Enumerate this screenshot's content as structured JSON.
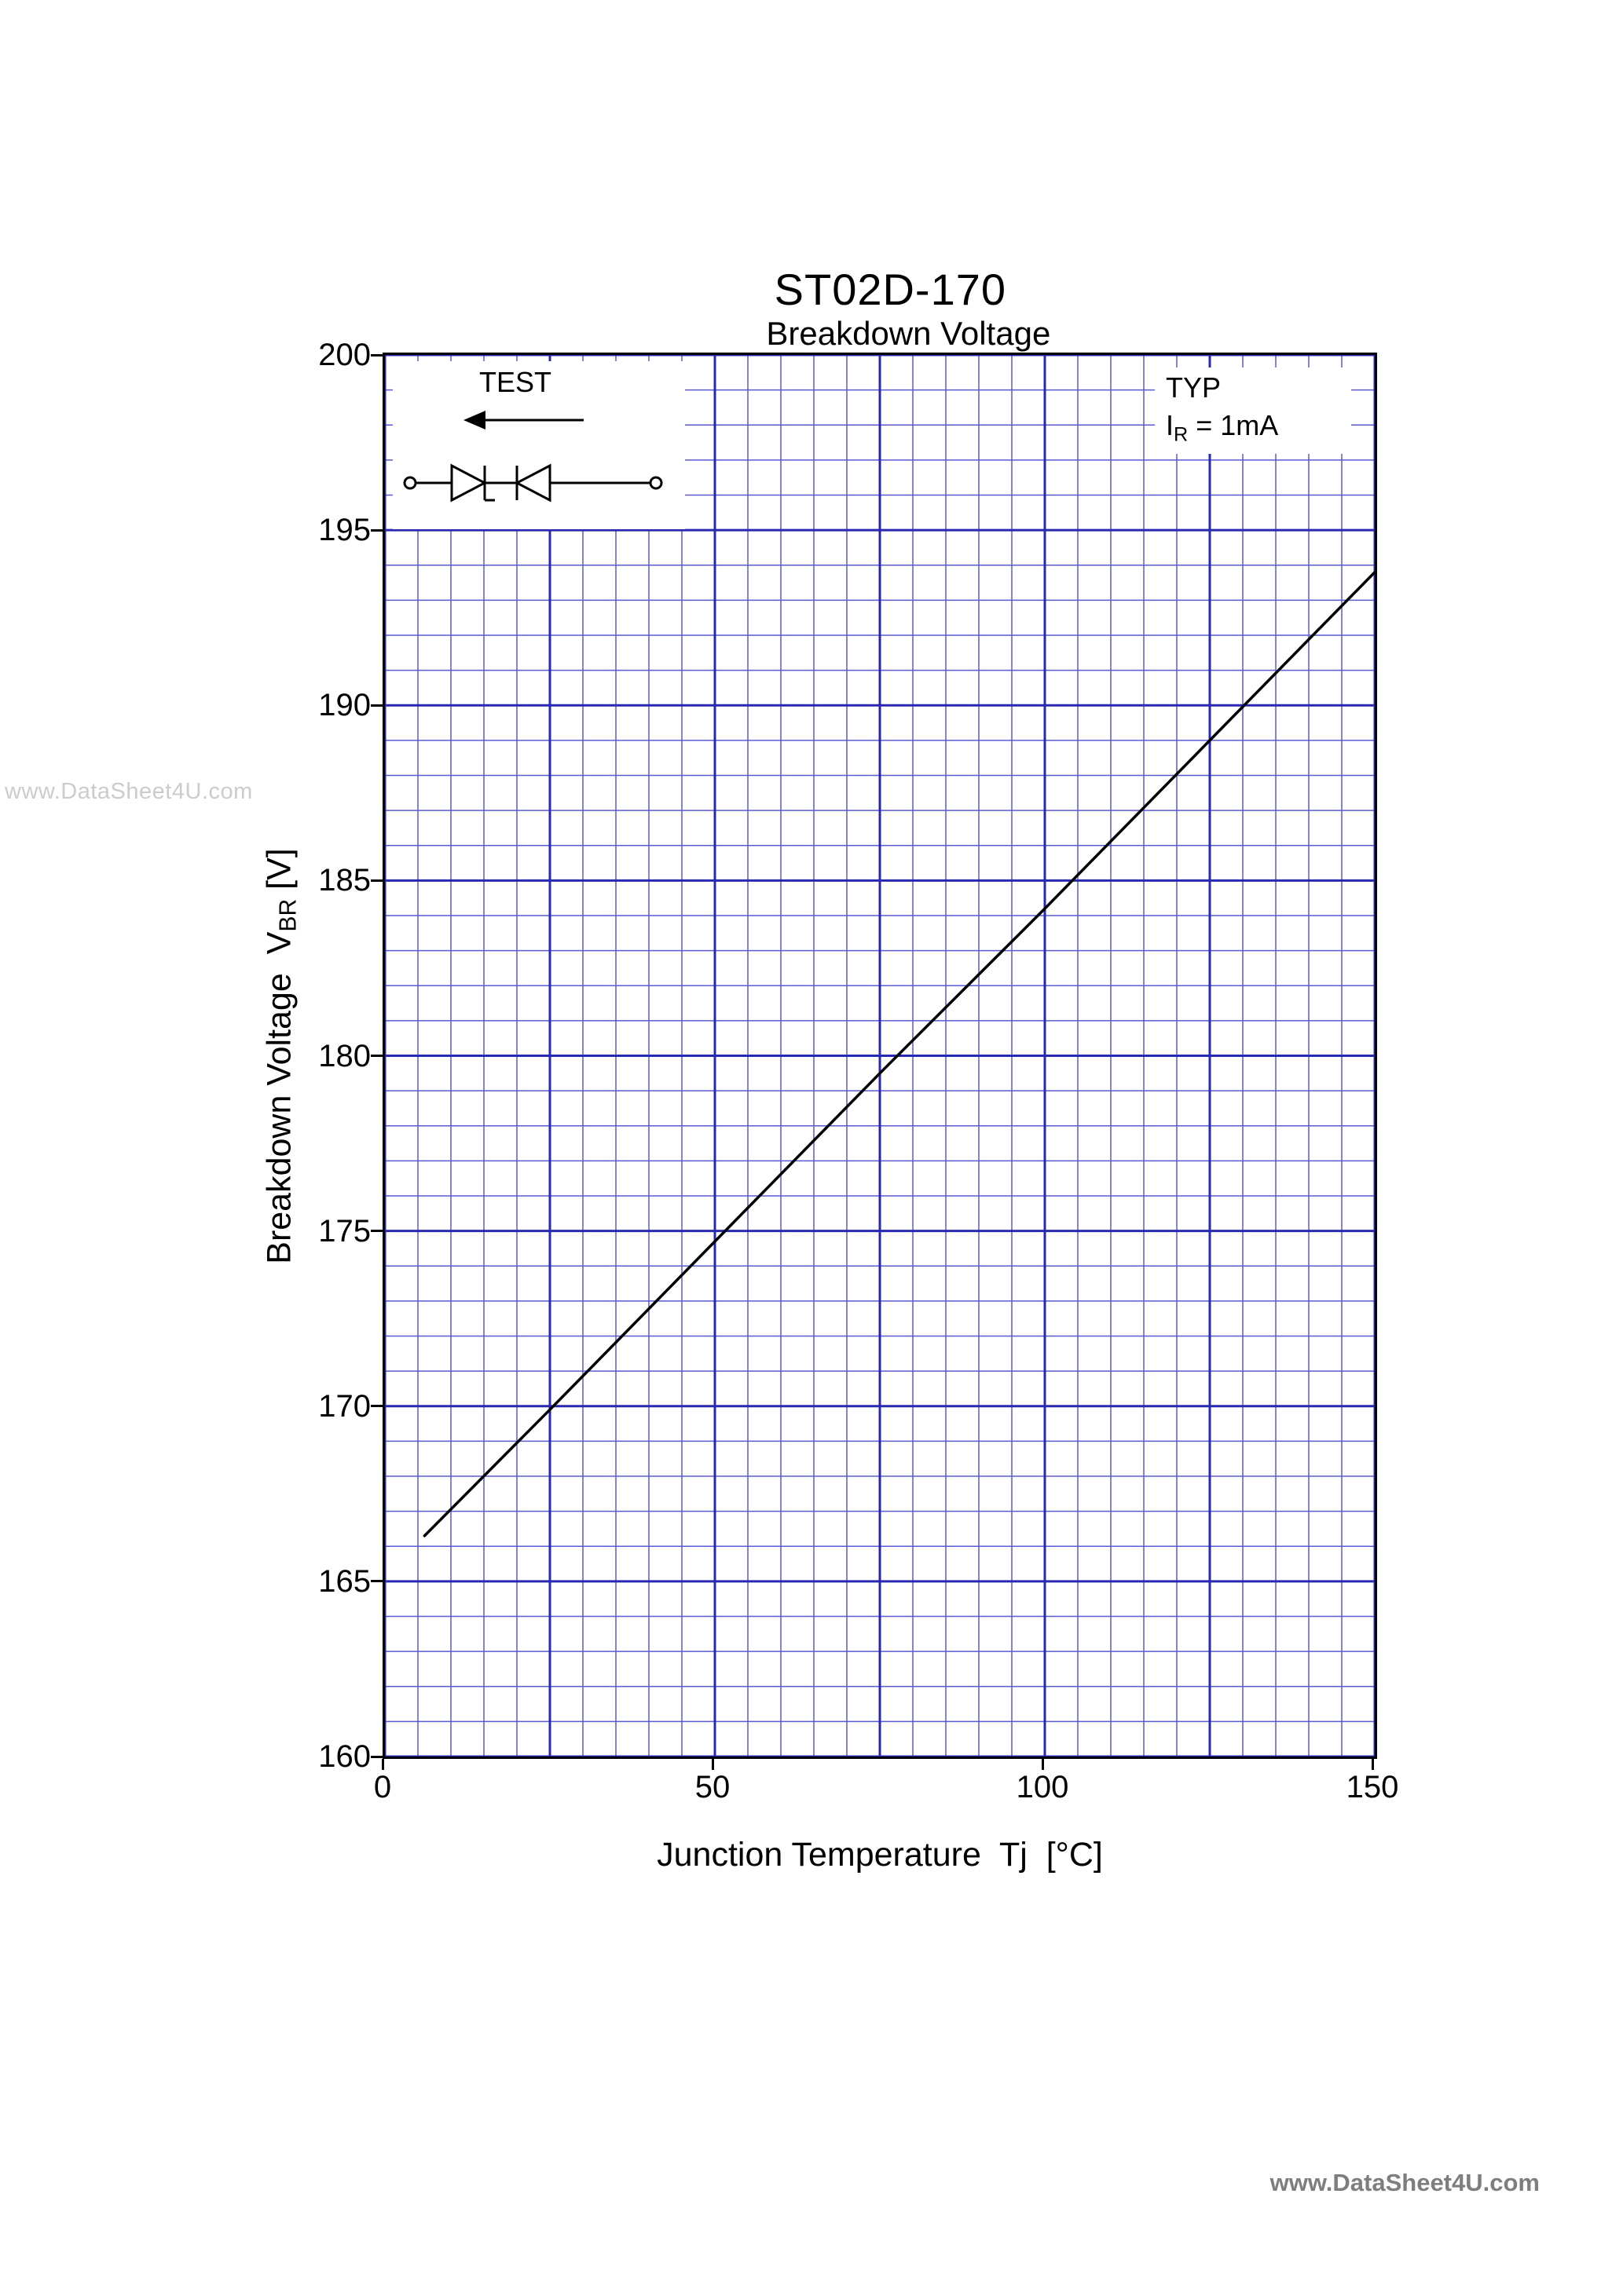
{
  "page": {
    "part_number": "ST02D-170",
    "chart_title": "Breakdown Voltage",
    "watermark_left": "www.DataSheet4U.com",
    "watermark_bottom": "www.DataSheet4U.com"
  },
  "inset": {
    "test_label": "TEST"
  },
  "conditions": {
    "typ_label": "TYP",
    "current_pre": "I",
    "current_sub": "R",
    "current_post": " = 1mA"
  },
  "axes": {
    "y_label_pre": "Breakdown Voltage  V",
    "y_label_sub": "BR",
    "y_label_post": " [V]",
    "x_label": "Junction Temperature  Tj  [°C]"
  },
  "chart_data": {
    "type": "line",
    "title": "ST02D-170 Breakdown Voltage",
    "xlabel": "Junction Temperature Tj [°C]",
    "ylabel": "Breakdown Voltage VBR [V]",
    "xlim": [
      0,
      150
    ],
    "ylim": [
      160,
      200
    ],
    "x_ticks": [
      0,
      50,
      100,
      150
    ],
    "y_ticks": [
      160,
      165,
      170,
      175,
      180,
      185,
      190,
      195,
      200
    ],
    "grid": {
      "on": true,
      "x_minor": 5,
      "x_major": 25,
      "y_minor": 1,
      "y_major": 5,
      "color_minor": "#5a5ad2",
      "color_major": "#2828b0"
    },
    "series": [
      {
        "name": "VBR typical (IR = 1mA)",
        "color": "#000000",
        "x": [
          6,
          25,
          50,
          75,
          100,
          125,
          150
        ],
        "y": [
          166.3,
          169.9,
          174.7,
          179.5,
          184.2,
          189.0,
          193.8
        ]
      }
    ],
    "annotations": [
      "TEST",
      "TYP",
      "IR = 1mA"
    ],
    "legend": false
  }
}
